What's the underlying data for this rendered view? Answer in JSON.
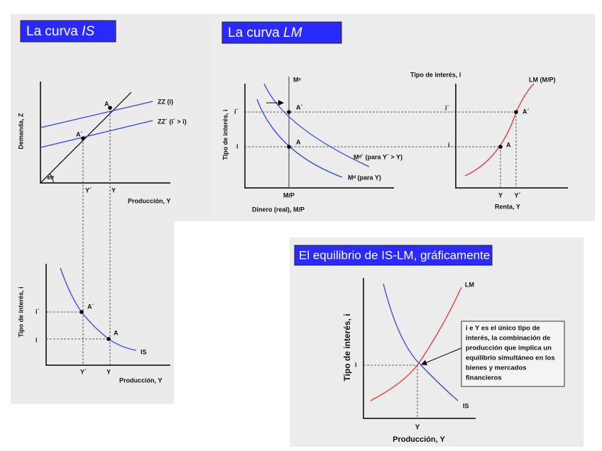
{
  "is_panel": {
    "title": [
      "La curva ",
      "IS"
    ],
    "top": {
      "y_label": "Demanda, Z",
      "x_label": "Producción, Y",
      "zz1": "ZZ (i)",
      "zz2": "ZZ´ (i´ > i)",
      "angle": "45º",
      "point_a": "A",
      "point_a2": "A´",
      "tick_y2": "Y´",
      "tick_y": "Y"
    },
    "bottom": {
      "y_label": "Tipo de interés, i",
      "x_label": "Producción, Y",
      "tick_i2": "i´",
      "tick_i": "i",
      "point_a2": "A´",
      "point_a": "A",
      "curve": "IS",
      "tick_y2": "Y´",
      "tick_y": "Y"
    }
  },
  "lm_panel": {
    "title": [
      "La curva ",
      "LM"
    ],
    "left": {
      "y_label": "Tipo de interés, i",
      "supply": "Mˢ",
      "tick_i2": "i´",
      "tick_i": "i",
      "point_a2": "A´",
      "point_a": "A",
      "demand2": "Mᵈ´ (para Y´ > Y)",
      "demand": "Mᵈ (para Y)",
      "tick_m": "M/P",
      "x_label": "Dinero (real), M/P"
    },
    "right": {
      "y_label": "Tipo de interés, i",
      "curve": "LM (M/P)",
      "tick_i2": "i´",
      "tick_i": "i",
      "point_a2": "A´",
      "point_a": "A",
      "tick_y": "Y",
      "tick_y2": "Y´",
      "x_label": "Renta, Y"
    }
  },
  "eq_panel": {
    "title": "El equilibrio de IS-LM, gráficamente",
    "lm": "LM",
    "is": "IS",
    "y_label": "Tipo de interés, i",
    "tick_i": "i",
    "tick_y": "Y",
    "x_label": "Producción, Y",
    "note": [
      "i e Y es el único tipo de",
      "interés, la combinación de",
      "producción que implica un",
      "equilibrio simultáneo en los",
      "bienes y mercados",
      "financieros"
    ]
  }
}
